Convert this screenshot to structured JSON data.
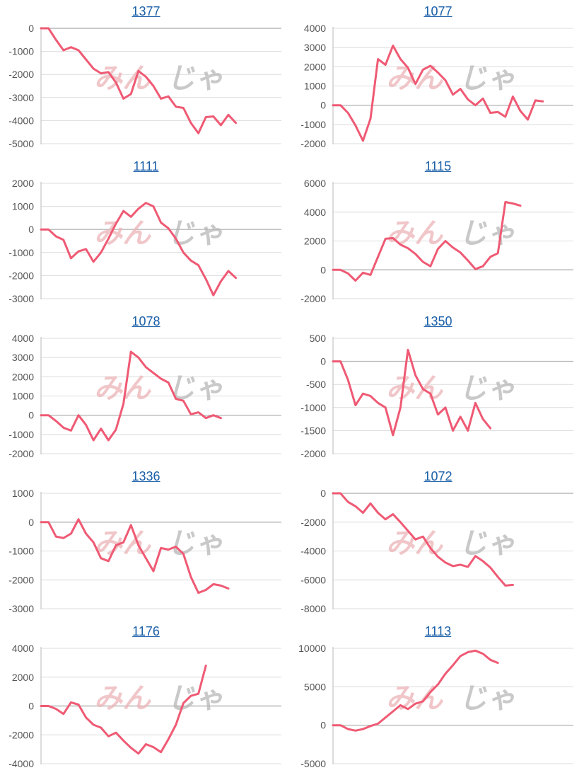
{
  "theme": {
    "line_color": "#ef5a74",
    "grid_color": "#dcdcdc",
    "zero_color": "#b8b8b8",
    "link_color": "#1a5fa8",
    "tick_color": "#555555"
  },
  "watermark": {
    "left": "みん",
    "right": "じゃ"
  },
  "chart_data": [
    {
      "type": "line",
      "title": "1377",
      "ylim": [
        -5000,
        0
      ],
      "yticks": [
        0,
        -1000,
        -2000,
        -3000,
        -4000,
        -5000
      ],
      "series": [
        {
          "values": [
            0,
            0,
            -500,
            -950,
            -820,
            -950,
            -1350,
            -1750,
            -1950,
            -1900,
            -2350,
            -3050,
            -2850,
            -1850,
            -2100,
            -2500,
            -3050,
            -2950,
            -3400,
            -3450,
            -4100,
            -4550,
            -3850,
            -3820,
            -4200,
            -3750,
            -4100
          ]
        }
      ]
    },
    {
      "type": "line",
      "title": "1077",
      "ylim": [
        -2000,
        4000
      ],
      "yticks": [
        4000,
        3000,
        2000,
        1000,
        0,
        -1000,
        -2000
      ],
      "series": [
        {
          "values": [
            0,
            0,
            -400,
            -1050,
            -1850,
            -700,
            2400,
            2100,
            3100,
            2400,
            1950,
            1100,
            1850,
            2050,
            1700,
            1300,
            550,
            850,
            300,
            0,
            350,
            -400,
            -350,
            -600,
            450,
            -300,
            -750,
            250,
            200
          ]
        }
      ]
    },
    {
      "type": "line",
      "title": "1111",
      "ylim": [
        -3000,
        2000
      ],
      "yticks": [
        2000,
        1000,
        0,
        -1000,
        -2000,
        -3000
      ],
      "series": [
        {
          "values": [
            0,
            0,
            -300,
            -450,
            -1250,
            -950,
            -850,
            -1400,
            -1000,
            -400,
            250,
            800,
            550,
            900,
            1150,
            1000,
            300,
            50,
            -400,
            -1000,
            -1350,
            -1550,
            -2150,
            -2850,
            -2250,
            -1800,
            -2100
          ]
        }
      ]
    },
    {
      "type": "line",
      "title": "1115",
      "ylim": [
        -2000,
        6000
      ],
      "yticks": [
        6000,
        4000,
        2000,
        0,
        -2000
      ],
      "series": [
        {
          "values": [
            0,
            0,
            -250,
            -750,
            -200,
            -350,
            900,
            2150,
            2200,
            1750,
            1500,
            1100,
            550,
            250,
            1450,
            2000,
            1550,
            1200,
            650,
            50,
            250,
            900,
            1150,
            4700,
            4600,
            4450
          ]
        }
      ]
    },
    {
      "type": "line",
      "title": "1078",
      "ylim": [
        -2000,
        4000
      ],
      "yticks": [
        4000,
        3000,
        2000,
        1000,
        0,
        -1000,
        -2000
      ],
      "series": [
        {
          "values": [
            0,
            0,
            -300,
            -650,
            -800,
            0,
            -500,
            -1300,
            -700,
            -1300,
            -750,
            600,
            3300,
            3000,
            2500,
            2200,
            1900,
            1700,
            850,
            750,
            50,
            150,
            -150,
            0,
            -150
          ]
        }
      ]
    },
    {
      "type": "line",
      "title": "1350",
      "ylim": [
        -2000,
        500
      ],
      "yticks": [
        500,
        0,
        -500,
        -1000,
        -1500,
        -2000
      ],
      "series": [
        {
          "values": [
            0,
            0,
            -400,
            -950,
            -700,
            -750,
            -900,
            -1000,
            -1600,
            -1000,
            250,
            -300,
            -600,
            -700,
            -1150,
            -1000,
            -1500,
            -1200,
            -1500,
            -900,
            -1250,
            -1450
          ]
        }
      ]
    },
    {
      "type": "line",
      "title": "1336",
      "ylim": [
        -3000,
        1000
      ],
      "yticks": [
        1000,
        0,
        -1000,
        -2000,
        -3000
      ],
      "series": [
        {
          "values": [
            0,
            0,
            -500,
            -550,
            -400,
            100,
            -400,
            -700,
            -1250,
            -1350,
            -800,
            -700,
            -100,
            -800,
            -1250,
            -1700,
            -900,
            -950,
            -850,
            -1100,
            -1900,
            -2450,
            -2350,
            -2150,
            -2200,
            -2300
          ]
        }
      ]
    },
    {
      "type": "line",
      "title": "1072",
      "ylim": [
        -8000,
        0
      ],
      "yticks": [
        0,
        -2000,
        -4000,
        -6000,
        -8000
      ],
      "series": [
        {
          "values": [
            0,
            0,
            -600,
            -900,
            -1350,
            -700,
            -1350,
            -1800,
            -1450,
            -2000,
            -2600,
            -3200,
            -3000,
            -3800,
            -4400,
            -4800,
            -5050,
            -4950,
            -5100,
            -4350,
            -4700,
            -5150,
            -5800,
            -6400,
            -6350
          ]
        }
      ]
    },
    {
      "type": "line",
      "title": "1176",
      "ylim": [
        -4000,
        4000
      ],
      "yticks": [
        4000,
        2000,
        0,
        -2000,
        -4000
      ],
      "series": [
        {
          "values": [
            0,
            0,
            -200,
            -550,
            250,
            100,
            -800,
            -1300,
            -1500,
            -2100,
            -1850,
            -2400,
            -2900,
            -3300,
            -2650,
            -2850,
            -3200,
            -2300,
            -1300,
            200,
            700,
            850,
            2800
          ]
        }
      ]
    },
    {
      "type": "line",
      "title": "1113",
      "ylim": [
        -5000,
        10000
      ],
      "yticks": [
        10000,
        5000,
        0,
        -5000
      ],
      "series": [
        {
          "values": [
            0,
            0,
            -500,
            -700,
            -500,
            -100,
            200,
            1000,
            1800,
            2600,
            2100,
            2800,
            3100,
            4300,
            5300,
            6700,
            7800,
            9000,
            9500,
            9700,
            9300,
            8500,
            8100
          ]
        }
      ]
    }
  ]
}
